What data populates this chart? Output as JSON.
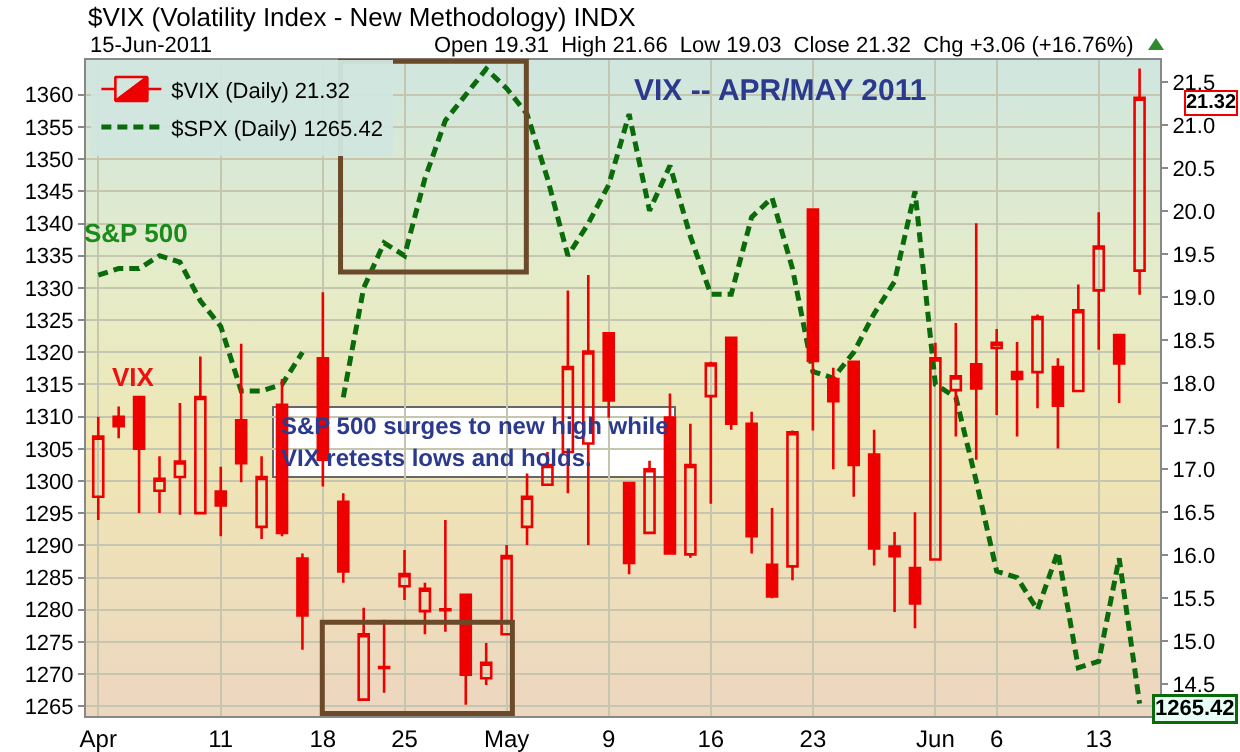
{
  "chart_data": {
    "type": "candlestick",
    "title": "$VIX (Volatility Index - New Methodology) INDX",
    "subtitle": "15-Jun-2011",
    "annotations": [
      "Open 19.31  High 21.66  Low 19.03  Close 21.32  Chg +3.06 (+16.76%)",
      "VIX -- APR/MAY 2011",
      "S&P 500",
      "VIX",
      "S&P 500 surges to new high while\nVIX retests lows and holds."
    ],
    "categories": [
      "Apr",
      null,
      null,
      null,
      null,
      null,
      "11",
      null,
      null,
      null,
      null,
      "18",
      null,
      null,
      null,
      "25",
      null,
      null,
      null,
      null,
      "May",
      null,
      null,
      null,
      null,
      "9",
      null,
      null,
      null,
      null,
      "16",
      null,
      null,
      null,
      null,
      "23",
      null,
      null,
      null,
      null,
      null,
      "Jun",
      null,
      null,
      "6",
      null,
      null,
      null,
      null,
      "13",
      null,
      null
    ],
    "ylim": [
      1263.5,
      1365.4
    ],
    "yticks": [
      1265,
      1270,
      1275,
      1280,
      1285,
      1290,
      1295,
      1300,
      1305,
      1310,
      1315,
      1320,
      1325,
      1330,
      1335,
      1340,
      1345,
      1350,
      1355,
      1360
    ],
    "y2lim": [
      14.13,
      21.76
    ],
    "y2ticks": [
      14.5,
      {
        "value": 15,
        "label": "15.0"
      },
      15.5,
      {
        "value": 16,
        "label": "16.0"
      },
      16.5,
      {
        "value": 17,
        "label": "17.0"
      },
      17.5,
      {
        "value": 18,
        "label": "18.0"
      },
      18.5,
      {
        "value": 19,
        "label": "19.0"
      },
      19.5,
      {
        "value": 20,
        "label": "20.0"
      },
      20.5,
      {
        "value": 21,
        "label": "21.0"
      },
      21.5
    ],
    "grid": true,
    "legend": "top left",
    "series": [
      {
        "type": "line",
        "name": "$SPX (Daily) 1265.42",
        "color": "#0b6b0b",
        "line_style": "dashed",
        "values": [
          1332,
          1333,
          1333,
          1335,
          1334,
          1328,
          1324,
          1314,
          1314,
          1315,
          1320,
          null,
          1313,
          1330,
          1337,
          1335,
          1347,
          1356,
          1360,
          1364,
          1361,
          1357,
          1347,
          1335,
          1340,
          1346,
          1357,
          1342,
          1349,
          1338,
          1329,
          1329,
          1341,
          1344,
          1333,
          1317,
          1316,
          1320,
          1326,
          1331,
          1345,
          1315,
          1313,
          1300,
          1286,
          1285,
          1280,
          1289,
          1271,
          1272,
          1288,
          1265.42
        ],
        "value_labels": [
          null,
          null,
          null,
          null,
          null,
          null,
          null,
          null,
          null,
          null,
          null,
          null,
          null,
          null,
          null,
          null,
          null,
          null,
          null,
          null,
          null,
          null,
          null,
          null,
          null,
          null,
          null,
          null,
          null,
          null,
          null,
          null,
          null,
          null,
          null,
          null,
          null,
          null,
          null,
          null,
          null,
          null,
          null,
          null,
          null,
          null,
          null,
          null,
          null,
          null,
          null,
          "1265.42"
        ]
      },
      {
        "type": "candlestick",
        "name": "$VIX (Daily) 21.32",
        "color": "#ee0000",
        "axis": "y2",
        "ohlc": [
          [
            16.68,
            17.61,
            16.41,
            17.38
          ],
          [
            17.61,
            17.73,
            17.36,
            17.5
          ],
          [
            17.84,
            17.84,
            16.49,
            17.24
          ],
          [
            16.75,
            17.15,
            16.49,
            16.89
          ],
          [
            16.91,
            17.77,
            16.47,
            17.09
          ],
          [
            16.49,
            18.31,
            16.49,
            17.84
          ],
          [
            16.74,
            17.03,
            16.22,
            16.58
          ],
          [
            17.57,
            18.46,
            16.85,
            17.07
          ],
          [
            16.33,
            17.15,
            16.19,
            16.91
          ],
          [
            17.75,
            18.05,
            16.22,
            16.26
          ],
          [
            15.96,
            16.02,
            14.9,
            15.3
          ],
          [
            18.29,
            19.06,
            16.8,
            17.11
          ],
          [
            16.62,
            16.72,
            15.68,
            15.81
          ],
          [
            14.32,
            15.39,
            14.32,
            15.08
          ],
          [
            14.7,
            15.25,
            14.4,
            14.69
          ],
          [
            15.64,
            16.06,
            15.48,
            15.78
          ],
          [
            15.35,
            15.68,
            15.08,
            15.61
          ],
          [
            15.37,
            16.41,
            15.11,
            15.36
          ],
          [
            15.54,
            15.54,
            14.26,
            14.61
          ],
          [
            14.57,
            14.98,
            14.49,
            14.75
          ],
          [
            15.08,
            16.12,
            15.08,
            15.99
          ],
          [
            16.33,
            16.95,
            16.12,
            16.68
          ],
          [
            16.82,
            17.2,
            16.82,
            17.05
          ],
          [
            17.2,
            19.08,
            16.72,
            18.19
          ],
          [
            17.3,
            19.26,
            16.12,
            18.37
          ],
          [
            18.58,
            18.58,
            17.6,
            17.8
          ],
          [
            16.84,
            16.84,
            15.78,
            15.91
          ],
          [
            16.26,
            17.1,
            16.26,
            17.0
          ],
          [
            17.6,
            17.88,
            16.02,
            16.02
          ],
          [
            16.01,
            17.53,
            15.97,
            17.05
          ],
          [
            17.85,
            18.25,
            16.6,
            18.23
          ],
          [
            18.53,
            18.53,
            17.46,
            17.53
          ],
          [
            17.53,
            17.67,
            16.02,
            16.22
          ],
          [
            15.89,
            16.55,
            15.5,
            15.52
          ],
          [
            15.87,
            17.45,
            15.71,
            17.43
          ],
          [
            20.02,
            20.03,
            17.45,
            18.26
          ],
          [
            18.05,
            18.18,
            17.0,
            17.79
          ],
          [
            18.25,
            18.26,
            16.68,
            17.05
          ],
          [
            17.17,
            17.46,
            15.88,
            16.08
          ],
          [
            16.1,
            16.27,
            15.34,
            15.99
          ],
          [
            15.85,
            16.5,
            15.15,
            15.44
          ],
          [
            15.95,
            18.47,
            15.95,
            18.29
          ],
          [
            17.92,
            18.7,
            17.38,
            18.08
          ],
          [
            18.22,
            19.86,
            17.11,
            17.94
          ],
          [
            18.41,
            18.63,
            17.63,
            18.47
          ],
          [
            18.13,
            18.48,
            17.38,
            18.05
          ],
          [
            18.13,
            18.8,
            17.71,
            18.77
          ],
          [
            18.19,
            18.29,
            17.24,
            17.74
          ],
          [
            17.91,
            19.15,
            17.91,
            18.85
          ],
          [
            19.08,
            19.99,
            18.39,
            19.59
          ],
          [
            18.56,
            18.56,
            17.77,
            18.23
          ],
          [
            19.31,
            21.66,
            19.03,
            21.32
          ]
        ],
        "value_labels": [
          null,
          null,
          null,
          null,
          null,
          null,
          null,
          null,
          null,
          null,
          null,
          null,
          null,
          null,
          null,
          null,
          null,
          null,
          null,
          null,
          null,
          null,
          null,
          null,
          null,
          null,
          null,
          null,
          null,
          null,
          null,
          null,
          null,
          null,
          null,
          null,
          null,
          null,
          null,
          null,
          null,
          null,
          null,
          null,
          null,
          null,
          null,
          null,
          null,
          null,
          null,
          "21.32"
        ]
      }
    ]
  }
}
